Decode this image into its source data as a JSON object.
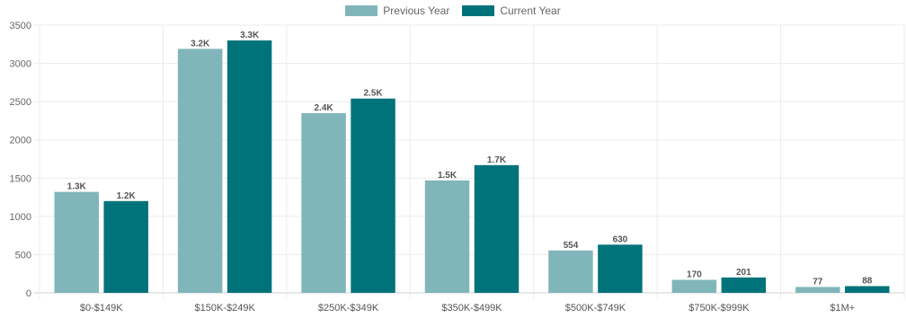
{
  "chart_data": {
    "type": "bar",
    "categories": [
      "$0-$149K",
      "$150K-$249K",
      "$250K-$349K",
      "$350K-$499K",
      "$500K-$749K",
      "$750K-$999K",
      "$1M+"
    ],
    "series": [
      {
        "name": "Previous Year",
        "color": "#80B6BA",
        "values": [
          1320,
          3190,
          2350,
          1470,
          554,
          170,
          77
        ],
        "labels": [
          "1.3K",
          "3.2K",
          "2.4K",
          "1.5K",
          "554",
          "170",
          "77"
        ]
      },
      {
        "name": "Current Year",
        "color": "#00737A",
        "values": [
          1200,
          3300,
          2540,
          1670,
          630,
          201,
          88
        ],
        "labels": [
          "1.2K",
          "3.3K",
          "2.5K",
          "1.7K",
          "630",
          "201",
          "88"
        ]
      }
    ],
    "ylim": [
      0,
      3500
    ],
    "yticks": [
      "0",
      "500",
      "1000",
      "1500",
      "2000",
      "2500",
      "3000",
      "3500"
    ],
    "grid": true,
    "legend_position": "top-center"
  }
}
